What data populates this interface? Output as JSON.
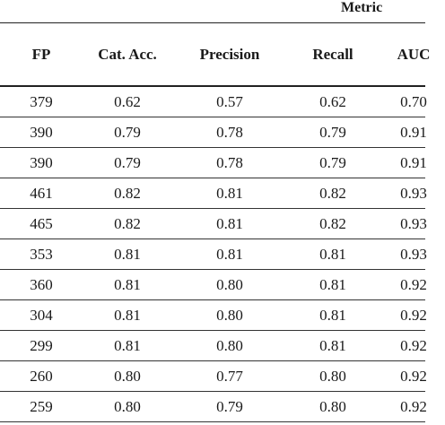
{
  "table": {
    "group_header": "Metric",
    "columns": [
      "FP",
      "Cat. Acc.",
      "Precision",
      "Recall",
      "AUC"
    ],
    "rows": [
      [
        "379",
        "0.62",
        "0.57",
        "0.62",
        "0.70"
      ],
      [
        "390",
        "0.79",
        "0.78",
        "0.79",
        "0.91"
      ],
      [
        "390",
        "0.79",
        "0.78",
        "0.79",
        "0.91"
      ],
      [
        "461",
        "0.82",
        "0.81",
        "0.82",
        "0.93"
      ],
      [
        "465",
        "0.82",
        "0.81",
        "0.82",
        "0.93"
      ],
      [
        "353",
        "0.81",
        "0.81",
        "0.81",
        "0.93"
      ],
      [
        "360",
        "0.81",
        "0.80",
        "0.81",
        "0.92"
      ],
      [
        "304",
        "0.81",
        "0.80",
        "0.81",
        "0.92"
      ],
      [
        "299",
        "0.81",
        "0.80",
        "0.81",
        "0.92"
      ],
      [
        "260",
        "0.80",
        "0.77",
        "0.80",
        "0.92"
      ],
      [
        "259",
        "0.80",
        "0.79",
        "0.80",
        "0.92"
      ]
    ]
  }
}
